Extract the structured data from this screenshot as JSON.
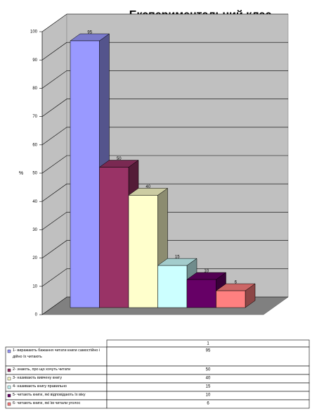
{
  "chart_data": {
    "type": "bar3d",
    "title": "Експериментальний клас",
    "y_label": "%",
    "categories": [
      "1- виражають бажання читати книги самостійно і дійно їх читають",
      "2- знають, про що хочуть читати",
      "3- називають вивчену книгу",
      "4- називають книгу правильно",
      "5- читають книги, які відповідають їх віку",
      "6- читають книги, які їм читали уголос"
    ],
    "series": [
      {
        "name": "1",
        "values": [
          95,
          50,
          40,
          15,
          10,
          6
        ]
      }
    ],
    "colors": [
      "#9999ff",
      "#993366",
      "#ffffcc",
      "#ccffff",
      "#660066",
      "#ff8080"
    ],
    "ylim": [
      0,
      100
    ],
    "yticks": [
      0,
      10,
      20,
      30,
      40,
      50,
      60,
      70,
      80,
      90,
      100
    ],
    "grid": true
  }
}
